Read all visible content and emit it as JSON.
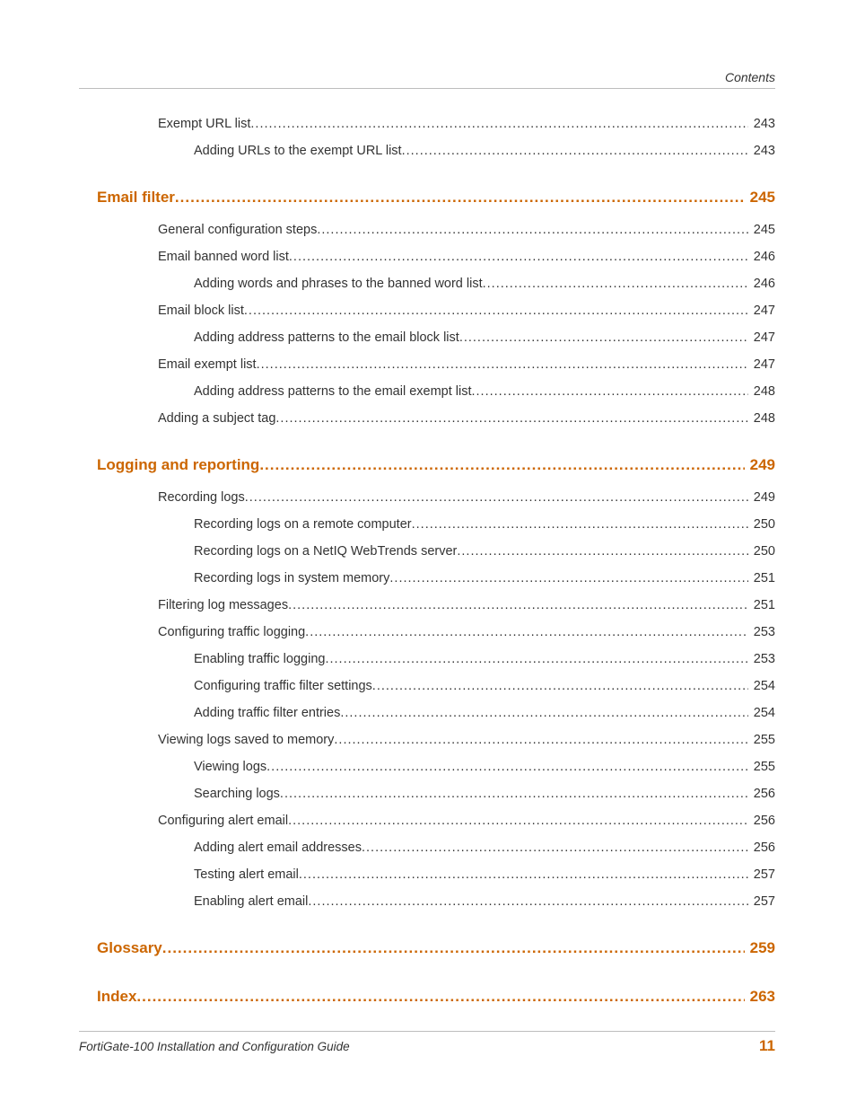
{
  "header": {
    "label": "Contents"
  },
  "footer": {
    "doc_title": "FortiGate-100 Installation and Configuration Guide",
    "page_number": "11"
  },
  "colors": {
    "accent": "#cc6600",
    "text": "#333333",
    "rule": "#bdbdbd",
    "background": "#ffffff"
  },
  "typography": {
    "body_font": "Arial",
    "body_size_pt": 11,
    "heading_size_pt": 13
  },
  "toc": [
    {
      "level": 2,
      "title": "Exempt URL list",
      "page": "243"
    },
    {
      "level": 3,
      "title": "Adding URLs to the exempt URL list",
      "page": "243"
    },
    {
      "level": 1,
      "title": "Email filter",
      "page": "245"
    },
    {
      "level": 2,
      "title": "General configuration steps",
      "page": "245"
    },
    {
      "level": 2,
      "title": "Email banned word list",
      "page": "246"
    },
    {
      "level": 3,
      "title": "Adding words and phrases to the banned word list",
      "page": "246"
    },
    {
      "level": 2,
      "title": "Email block list",
      "page": "247"
    },
    {
      "level": 3,
      "title": "Adding address patterns to the email block list",
      "page": "247"
    },
    {
      "level": 2,
      "title": "Email exempt list",
      "page": "247"
    },
    {
      "level": 3,
      "title": "Adding address patterns to the email exempt list",
      "page": "248"
    },
    {
      "level": 2,
      "title": "Adding a subject tag",
      "page": "248"
    },
    {
      "level": 1,
      "title": "Logging and reporting",
      "page": "249"
    },
    {
      "level": 2,
      "title": "Recording logs",
      "page": "249"
    },
    {
      "level": 3,
      "title": "Recording logs on a remote computer",
      "page": "250"
    },
    {
      "level": 3,
      "title": "Recording logs on a NetIQ WebTrends server",
      "page": "250"
    },
    {
      "level": 3,
      "title": "Recording logs in system memory",
      "page": "251"
    },
    {
      "level": 2,
      "title": "Filtering log messages",
      "page": "251"
    },
    {
      "level": 2,
      "title": "Configuring traffic logging",
      "page": "253"
    },
    {
      "level": 3,
      "title": "Enabling traffic logging",
      "page": "253"
    },
    {
      "level": 3,
      "title": "Configuring traffic filter settings",
      "page": "254"
    },
    {
      "level": 3,
      "title": "Adding traffic filter entries",
      "page": "254"
    },
    {
      "level": 2,
      "title": "Viewing logs saved to memory",
      "page": "255"
    },
    {
      "level": 3,
      "title": "Viewing logs",
      "page": "255"
    },
    {
      "level": 3,
      "title": "Searching logs",
      "page": "256"
    },
    {
      "level": 2,
      "title": "Configuring alert email",
      "page": "256"
    },
    {
      "level": 3,
      "title": "Adding alert email addresses",
      "page": "256"
    },
    {
      "level": 3,
      "title": "Testing alert email",
      "page": "257"
    },
    {
      "level": 3,
      "title": "Enabling alert email",
      "page": "257"
    },
    {
      "level": 1,
      "title": "Glossary",
      "page": "259"
    },
    {
      "level": 1,
      "title": "Index",
      "page": "263"
    }
  ]
}
